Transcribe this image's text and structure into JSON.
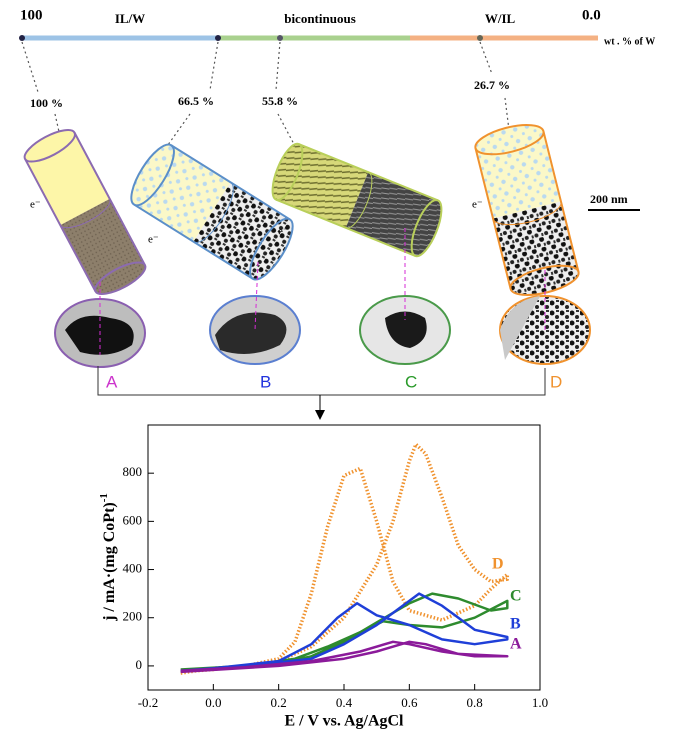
{
  "composition_axis": {
    "left": "100",
    "right": "0.0",
    "unit": "wt . % of W",
    "regions": [
      "IL/W",
      "bicontinuous",
      "W/IL"
    ]
  },
  "samples": [
    {
      "percent": "100 %",
      "label": "A",
      "electron": "e⁻"
    },
    {
      "percent": "66.5 %",
      "label": "B",
      "electron": "e⁻"
    },
    {
      "percent": "55.8 %",
      "label": "C",
      "electron": "e⁻"
    },
    {
      "percent": "26.7 %",
      "label": "D",
      "electron": "e⁻"
    }
  ],
  "scale_bar": "200 nm",
  "chart_data": {
    "type": "line",
    "xlabel": "E / V vs. Ag/AgCl",
    "ylabel": "j / mA·(mg CoPt)",
    "ylabel_superscript": "-1",
    "xlim": [
      -0.2,
      1.0
    ],
    "ylim": [
      -100,
      1000
    ],
    "xticks": [
      -0.2,
      {
        "value": 0,
        "label": "0.0"
      },
      0.2,
      0.4,
      0.6,
      0.8,
      {
        "value": 1,
        "label": "1.0"
      }
    ],
    "yticks": [
      0,
      200,
      400,
      600,
      800
    ],
    "series": [
      {
        "name": "D",
        "color": "#f0922e",
        "dotted": true,
        "x": [
          -0.1,
          0.0,
          0.1,
          0.2,
          0.3,
          0.4,
          0.5,
          0.55,
          0.6,
          0.62,
          0.65,
          0.7,
          0.75,
          0.8,
          0.85,
          0.9,
          0.9,
          0.85,
          0.8,
          0.7,
          0.6,
          0.55,
          0.5,
          0.45,
          0.4,
          0.35,
          0.3,
          0.25,
          0.2,
          0.1,
          0.0,
          -0.1
        ],
        "values": [
          -30,
          -10,
          0,
          20,
          80,
          200,
          420,
          600,
          850,
          920,
          880,
          700,
          500,
          400,
          350,
          360,
          380,
          320,
          250,
          190,
          230,
          350,
          600,
          820,
          790,
          580,
          300,
          100,
          30,
          0,
          -15,
          -25
        ]
      },
      {
        "name": "C",
        "color": "#2e8b2e",
        "dotted": false,
        "x": [
          -0.1,
          0.0,
          0.2,
          0.3,
          0.4,
          0.5,
          0.6,
          0.67,
          0.75,
          0.85,
          0.9,
          0.9,
          0.8,
          0.7,
          0.6,
          0.52,
          0.45,
          0.35,
          0.25,
          0.1,
          -0.1
        ],
        "values": [
          -20,
          -10,
          10,
          40,
          100,
          180,
          260,
          300,
          280,
          230,
          240,
          270,
          200,
          160,
          170,
          185,
          140,
          80,
          30,
          0,
          -15
        ]
      },
      {
        "name": "B",
        "color": "#1f3fd8",
        "dotted": false,
        "x": [
          -0.1,
          0.1,
          0.3,
          0.4,
          0.5,
          0.6,
          0.63,
          0.7,
          0.8,
          0.9,
          0.9,
          0.8,
          0.7,
          0.6,
          0.5,
          0.44,
          0.38,
          0.3,
          0.2,
          0.0,
          -0.1
        ],
        "values": [
          -20,
          0,
          30,
          90,
          170,
          270,
          300,
          250,
          150,
          120,
          110,
          90,
          110,
          170,
          210,
          260,
          200,
          90,
          20,
          -10,
          -20
        ]
      },
      {
        "name": "A",
        "color": "#8b1a9a",
        "dotted": false,
        "x": [
          -0.1,
          0.2,
          0.4,
          0.5,
          0.6,
          0.65,
          0.75,
          0.9,
          0.9,
          0.8,
          0.7,
          0.6,
          0.55,
          0.45,
          0.3,
          0.1,
          -0.1
        ],
        "values": [
          -25,
          0,
          30,
          60,
          100,
          90,
          50,
          40,
          40,
          40,
          60,
          90,
          100,
          60,
          20,
          -5,
          -20
        ]
      }
    ]
  }
}
